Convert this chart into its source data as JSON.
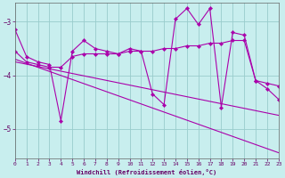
{
  "xlabel": "Windchill (Refroidissement éolien,°C)",
  "bg_color": "#c8eeee",
  "line_color": "#aa00aa",
  "grid_color": "#99cccc",
  "x_ticks": [
    0,
    1,
    2,
    3,
    4,
    5,
    6,
    7,
    8,
    9,
    10,
    11,
    12,
    13,
    14,
    15,
    16,
    17,
    18,
    19,
    20,
    21,
    22,
    23
  ],
  "y_ticks": [
    -5,
    -4,
    -3
  ],
  "ylim": [
    -5.55,
    -2.65
  ],
  "xlim": [
    0,
    23
  ],
  "line1_x": [
    0,
    1,
    2,
    3,
    4,
    5,
    6,
    7,
    8,
    9,
    10,
    11,
    12,
    13,
    14,
    15,
    16,
    17,
    18,
    19,
    20,
    21,
    22,
    23
  ],
  "line1_y": [
    -3.15,
    -3.65,
    -3.75,
    -3.8,
    -4.85,
    -3.55,
    -3.35,
    -3.5,
    -3.55,
    -3.6,
    -3.5,
    -3.55,
    -4.35,
    -4.55,
    -2.95,
    -2.75,
    -3.05,
    -2.75,
    -4.6,
    -3.2,
    -3.25,
    -4.1,
    -4.25,
    -4.45
  ],
  "line2_x": [
    0,
    1,
    2,
    3,
    4,
    5,
    6,
    7,
    8,
    9,
    10,
    11,
    12,
    13,
    14,
    15,
    16,
    17,
    18,
    19,
    20,
    21,
    22,
    23
  ],
  "line2_y": [
    -3.55,
    -3.75,
    -3.8,
    -3.85,
    -3.85,
    -3.65,
    -3.6,
    -3.6,
    -3.6,
    -3.6,
    -3.55,
    -3.55,
    -3.55,
    -3.5,
    -3.5,
    -3.45,
    -3.45,
    -3.4,
    -3.4,
    -3.35,
    -3.35,
    -4.1,
    -4.15,
    -4.2
  ],
  "line3_x": [
    0,
    23
  ],
  "line3_y": [
    -3.7,
    -5.45
  ],
  "line4_x": [
    0,
    23
  ],
  "line4_y": [
    -3.75,
    -4.75
  ]
}
